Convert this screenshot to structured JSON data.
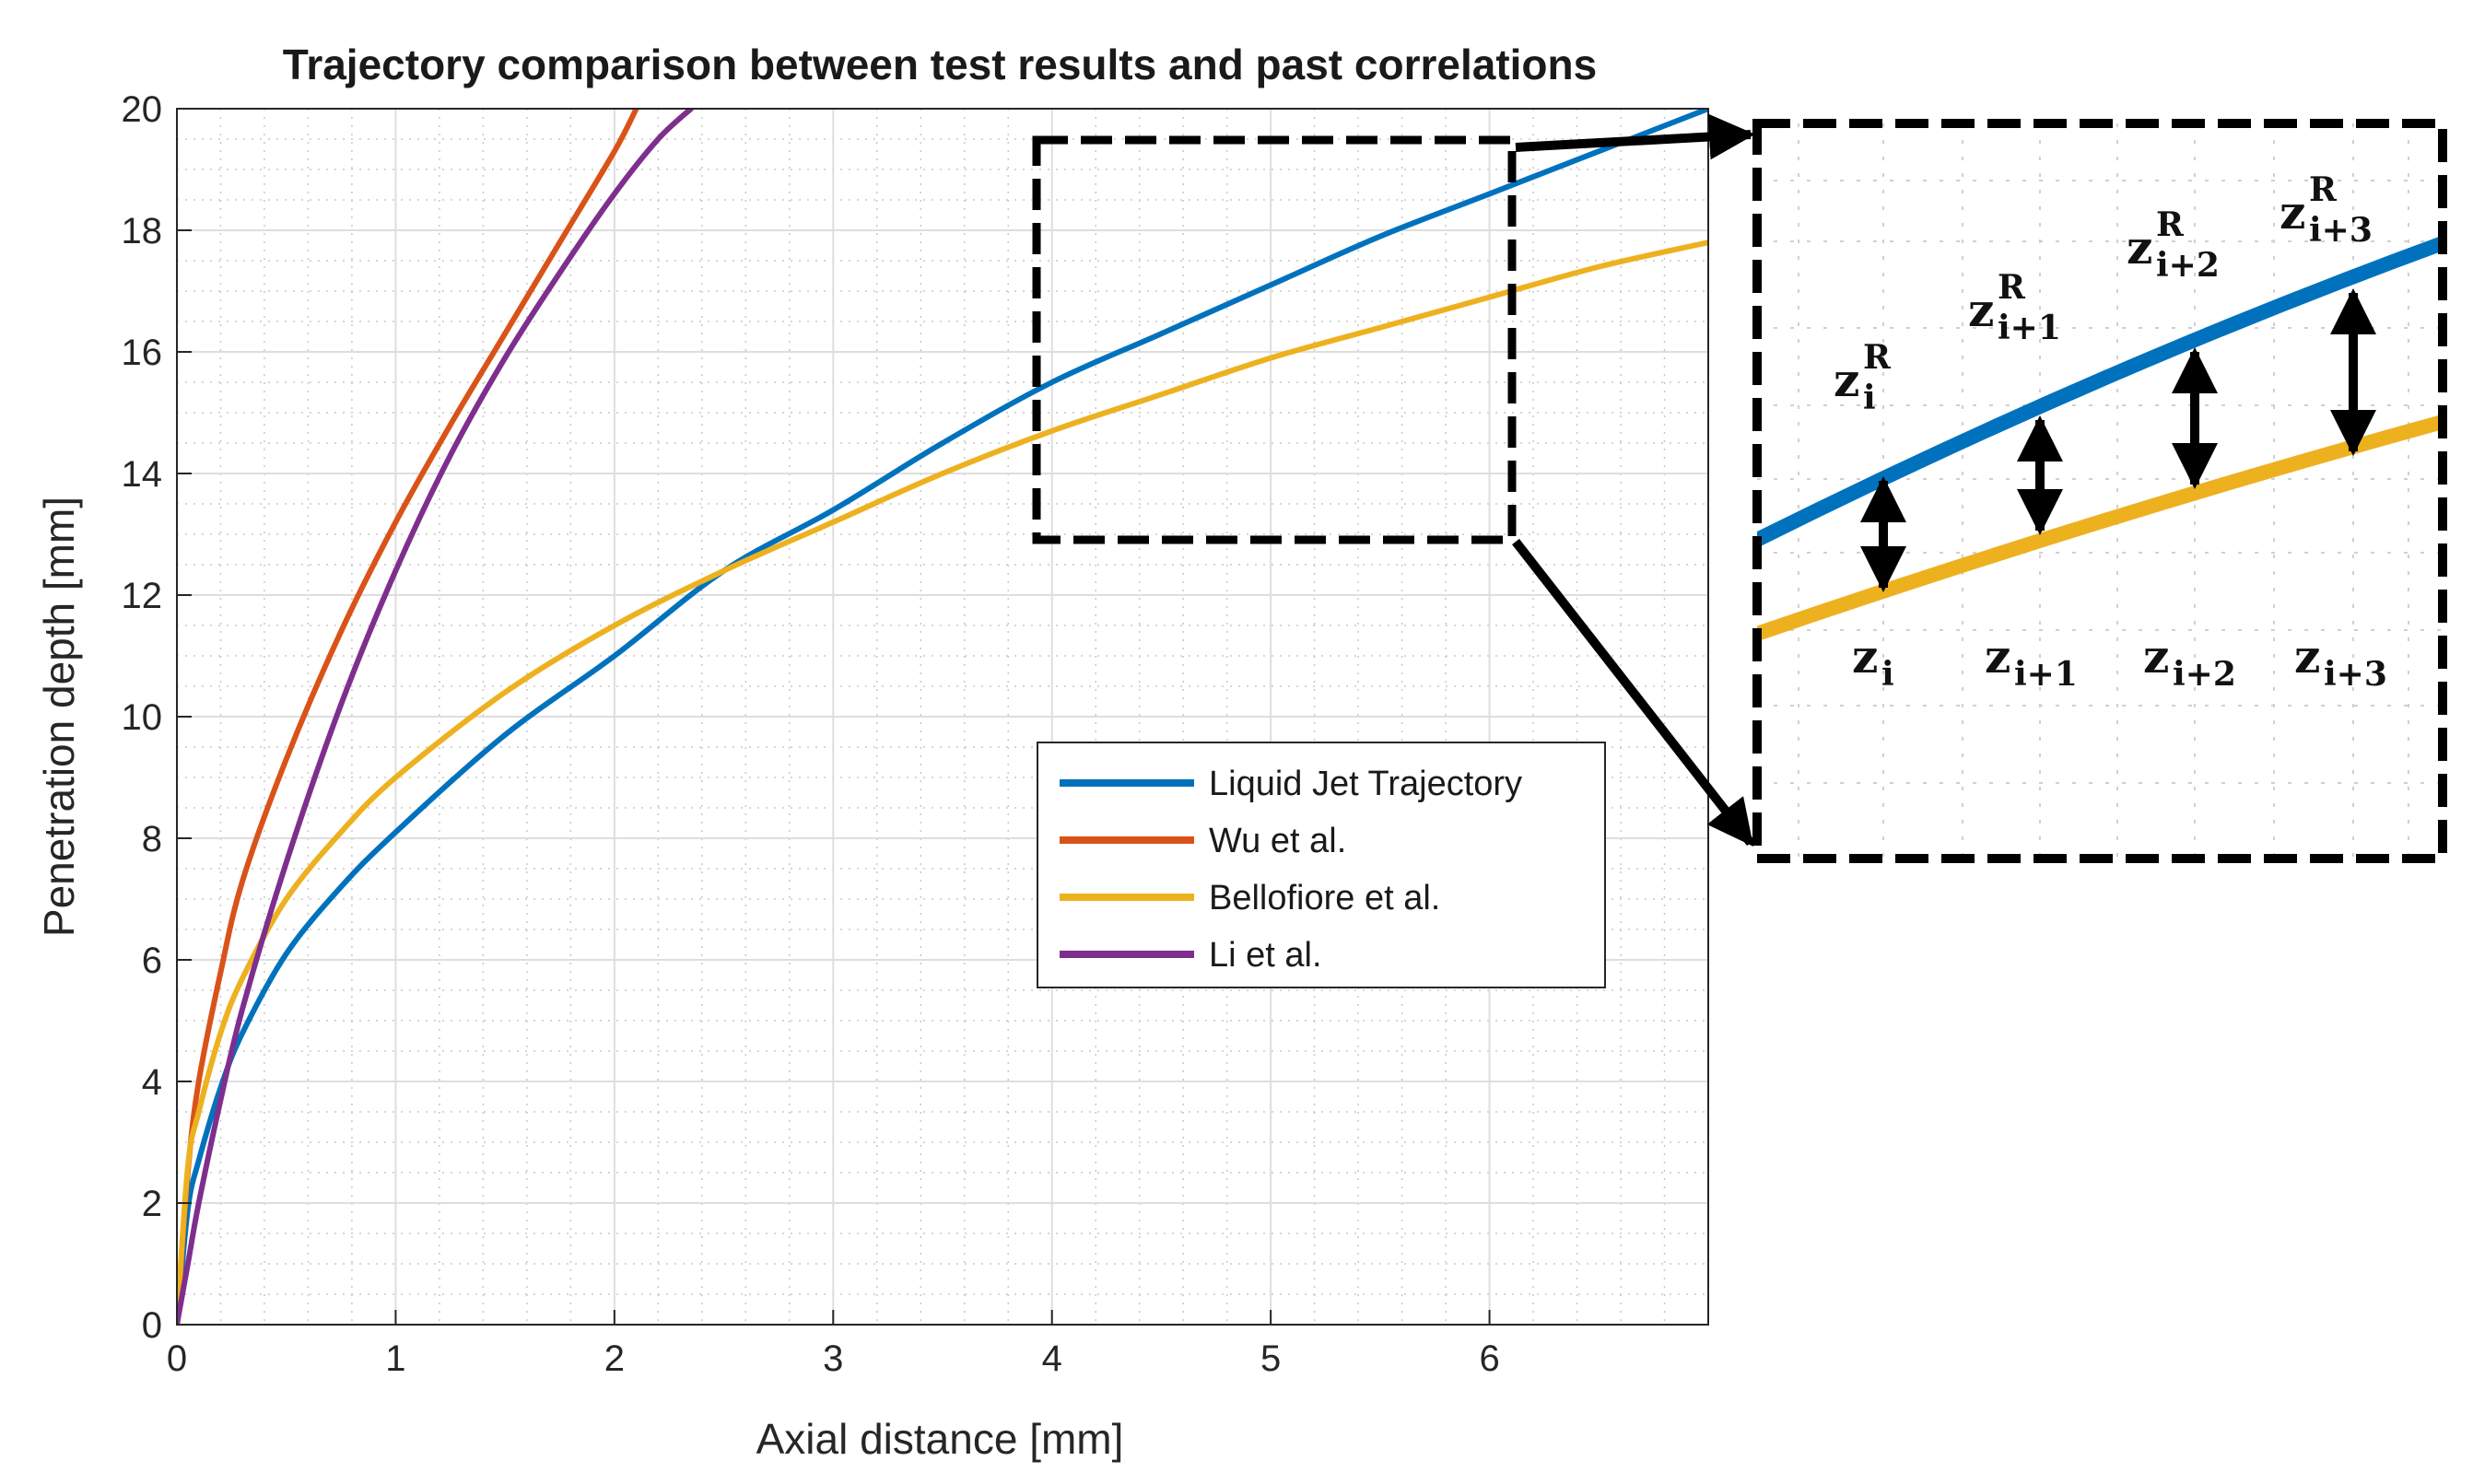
{
  "chart_data": {
    "type": "line",
    "title": "Trajectory comparison between test results and past correlations",
    "xlabel": "Axial distance [mm]",
    "ylabel": "Penetration depth [mm]",
    "xlim": [
      0,
      7
    ],
    "ylim": [
      0,
      20
    ],
    "xticks": [
      "0",
      "1",
      "2",
      "3",
      "4",
      "5",
      "6"
    ],
    "yticks": [
      "0",
      "2",
      "4",
      "6",
      "8",
      "10",
      "12",
      "14",
      "16",
      "18",
      "20"
    ],
    "grid": true,
    "legend_position": "center-right",
    "series": [
      {
        "name": "Liquid Jet Trajectory",
        "color": "#0072BD",
        "x": [
          0,
          0.05,
          0.1,
          0.2,
          0.3,
          0.5,
          0.75,
          1,
          1.5,
          2,
          2.5,
          3,
          3.5,
          4,
          4.5,
          5,
          5.5,
          6,
          6.5,
          7
        ],
        "y": [
          0,
          1.9,
          2.7,
          3.9,
          4.8,
          6.1,
          7.2,
          8.1,
          9.7,
          11.0,
          12.4,
          13.4,
          14.5,
          15.5,
          16.3,
          17.1,
          17.9,
          18.6,
          19.3,
          20.0
        ]
      },
      {
        "name": "Wu et al.",
        "color": "#D95319",
        "x": [
          0,
          0.05,
          0.1,
          0.2,
          0.3,
          0.5,
          0.75,
          1,
          1.25,
          1.5,
          1.75,
          2,
          2.1
        ],
        "y": [
          0,
          2.5,
          4.0,
          5.8,
          7.3,
          9.3,
          11.4,
          13.2,
          14.8,
          16.3,
          17.8,
          19.3,
          20.0
        ]
      },
      {
        "name": "Bellofiore et al.",
        "color": "#EDB120",
        "x": [
          0,
          0.05,
          0.1,
          0.2,
          0.3,
          0.5,
          0.75,
          1,
          1.5,
          2,
          2.5,
          3,
          3.5,
          4,
          4.5,
          5,
          5.5,
          6,
          6.5,
          7
        ],
        "y": [
          0,
          2.6,
          3.5,
          4.8,
          5.7,
          7.0,
          8.1,
          9.0,
          10.4,
          11.5,
          12.4,
          13.2,
          14.0,
          14.7,
          15.3,
          15.9,
          16.4,
          16.9,
          17.4,
          17.8
        ]
      },
      {
        "name": "Li et al.",
        "color": "#7E2F8E",
        "x": [
          0,
          0.05,
          0.1,
          0.2,
          0.3,
          0.5,
          0.75,
          1,
          1.25,
          1.5,
          1.75,
          2,
          2.2,
          2.35
        ],
        "y": [
          0,
          1.0,
          2.0,
          3.7,
          5.2,
          7.6,
          10.2,
          12.4,
          14.3,
          15.9,
          17.3,
          18.6,
          19.5,
          20.0
        ]
      }
    ],
    "inset": {
      "labels_upper": [
        {
          "base": "z",
          "sub": "i",
          "sup": "R"
        },
        {
          "base": "z",
          "sub": "i+1",
          "sup": "R"
        },
        {
          "base": "z",
          "sub": "i+2",
          "sup": "R"
        },
        {
          "base": "z",
          "sub": "i+3",
          "sup": "R"
        }
      ],
      "labels_lower": [
        {
          "base": "z",
          "sub": "i"
        },
        {
          "base": "z",
          "sub": "i+1"
        },
        {
          "base": "z",
          "sub": "i+2"
        },
        {
          "base": "z",
          "sub": "i+3"
        }
      ]
    }
  }
}
